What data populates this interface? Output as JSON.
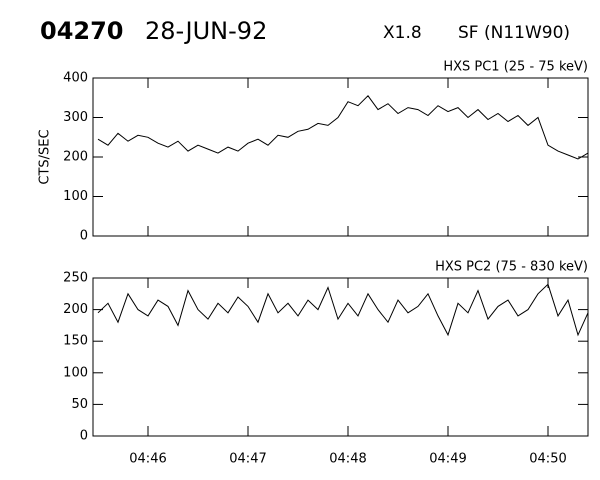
{
  "header": {
    "id": "04270",
    "date": "28-JUN-92",
    "class": "X1.8",
    "location": "SF (N11W90)"
  },
  "chart_data": [
    {
      "type": "line",
      "title": "HXS PC1 (25 - 75 keV)",
      "y_label": "CTS/SEC",
      "color": "#000000",
      "x": [
        "04:45:30",
        "04:45:36",
        "04:45:42",
        "04:45:48",
        "04:45:54",
        "04:46:00",
        "04:46:06",
        "04:46:12",
        "04:46:18",
        "04:46:24",
        "04:46:30",
        "04:46:36",
        "04:46:42",
        "04:46:48",
        "04:46:54",
        "04:47:00",
        "04:47:06",
        "04:47:12",
        "04:47:18",
        "04:47:24",
        "04:47:30",
        "04:47:36",
        "04:47:42",
        "04:47:48",
        "04:47:54",
        "04:48:00",
        "04:48:06",
        "04:48:12",
        "04:48:18",
        "04:48:24",
        "04:48:30",
        "04:48:36",
        "04:48:42",
        "04:48:48",
        "04:48:54",
        "04:49:00",
        "04:49:06",
        "04:49:12",
        "04:49:18",
        "04:49:24",
        "04:49:30",
        "04:49:36",
        "04:49:42",
        "04:49:48",
        "04:49:54",
        "04:50:00",
        "04:50:06",
        "04:50:12",
        "04:50:18",
        "04:50:24"
      ],
      "values": [
        245,
        230,
        260,
        240,
        255,
        250,
        235,
        225,
        240,
        215,
        230,
        220,
        210,
        225,
        215,
        235,
        245,
        230,
        255,
        250,
        265,
        270,
        285,
        280,
        300,
        340,
        330,
        355,
        320,
        335,
        310,
        325,
        320,
        305,
        330,
        315,
        325,
        300,
        320,
        295,
        310,
        290,
        305,
        280,
        300,
        230,
        215,
        205,
        195,
        210
      ],
      "xlim": [
        "04:45:27",
        "04:50:24"
      ],
      "ylim": [
        0,
        400
      ],
      "yticks": [
        0,
        100,
        200,
        300,
        400
      ]
    },
    {
      "type": "line",
      "title": "HXS PC2 (75 - 830 keV)",
      "color": "#000000",
      "x": [
        "04:45:30",
        "04:45:36",
        "04:45:42",
        "04:45:48",
        "04:45:54",
        "04:46:00",
        "04:46:06",
        "04:46:12",
        "04:46:18",
        "04:46:24",
        "04:46:30",
        "04:46:36",
        "04:46:42",
        "04:46:48",
        "04:46:54",
        "04:47:00",
        "04:47:06",
        "04:47:12",
        "04:47:18",
        "04:47:24",
        "04:47:30",
        "04:47:36",
        "04:47:42",
        "04:47:48",
        "04:47:54",
        "04:48:00",
        "04:48:06",
        "04:48:12",
        "04:48:18",
        "04:48:24",
        "04:48:30",
        "04:48:36",
        "04:48:42",
        "04:48:48",
        "04:48:54",
        "04:49:00",
        "04:49:06",
        "04:49:12",
        "04:49:18",
        "04:49:24",
        "04:49:30",
        "04:49:36",
        "04:49:42",
        "04:49:48",
        "04:49:54",
        "04:50:00",
        "04:50:06",
        "04:50:12",
        "04:50:18",
        "04:50:24"
      ],
      "values": [
        195,
        210,
        180,
        225,
        200,
        190,
        215,
        205,
        175,
        230,
        200,
        185,
        210,
        195,
        220,
        205,
        180,
        225,
        195,
        210,
        190,
        215,
        200,
        235,
        185,
        210,
        190,
        225,
        200,
        180,
        215,
        195,
        205,
        225,
        190,
        160,
        210,
        195,
        230,
        185,
        205,
        215,
        190,
        200,
        225,
        240,
        190,
        215,
        160,
        195
      ],
      "xlim": [
        "04:45:27",
        "04:50:24"
      ],
      "ylim": [
        0,
        250
      ],
      "yticks": [
        0,
        50,
        100,
        150,
        200,
        250
      ],
      "xticks": [
        "04:46",
        "04:47",
        "04:48",
        "04:49",
        "04:50"
      ]
    }
  ]
}
